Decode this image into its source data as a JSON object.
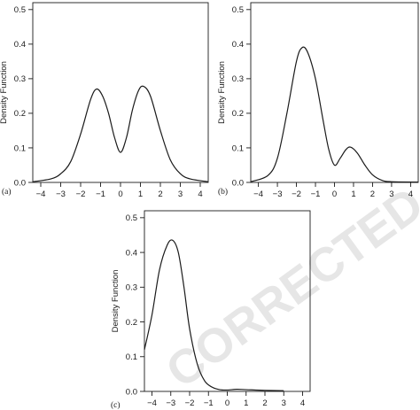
{
  "watermark": "CORRECTED PROOF",
  "chart_data": [
    {
      "type": "line",
      "panel_label": "(a)",
      "xlabel": "",
      "ylabel": "Density Function",
      "xlim": [
        -4.4,
        4.4
      ],
      "ylim": [
        0,
        0.52
      ],
      "xticks": [
        -4,
        -3,
        -2,
        -1,
        0,
        1,
        2,
        3,
        4
      ],
      "yticks": [
        0.0,
        0.1,
        0.2,
        0.3,
        0.4,
        0.5
      ],
      "ytick_labels": [
        "0.0",
        "0.1",
        "0.2",
        "0.3",
        "0.4",
        "0.5"
      ],
      "series": [
        {
          "x": [
            -4.4,
            -3.5,
            -3.0,
            -2.5,
            -2.0,
            -1.5,
            -1.2,
            -0.9,
            -0.6,
            -0.3,
            0.0,
            0.3,
            0.6,
            0.9,
            1.15,
            1.5,
            2.0,
            2.5,
            3.0,
            3.5,
            4.4
          ],
          "y": [
            0.002,
            0.01,
            0.025,
            0.06,
            0.14,
            0.24,
            0.27,
            0.25,
            0.2,
            0.13,
            0.087,
            0.13,
            0.21,
            0.265,
            0.278,
            0.25,
            0.15,
            0.065,
            0.025,
            0.01,
            0.002
          ]
        }
      ]
    },
    {
      "type": "line",
      "panel_label": "(b)",
      "xlabel": "",
      "ylabel": "Density Function",
      "xlim": [
        -4.4,
        4.4
      ],
      "ylim": [
        0,
        0.52
      ],
      "xticks": [
        -4,
        -3,
        -2,
        -1,
        0,
        1,
        2,
        3,
        4
      ],
      "yticks": [
        0.0,
        0.1,
        0.2,
        0.3,
        0.4,
        0.5
      ],
      "ytick_labels": [
        "0.0",
        "0.1",
        "0.2",
        "0.3",
        "0.4",
        "0.5"
      ],
      "series": [
        {
          "x": [
            -4.4,
            -3.5,
            -3.0,
            -2.5,
            -2.0,
            -1.7,
            -1.4,
            -1.0,
            -0.6,
            -0.3,
            0.0,
            0.3,
            0.6,
            0.85,
            1.2,
            1.6,
            2.0,
            2.5,
            3.0,
            4.4
          ],
          "y": [
            0.002,
            0.02,
            0.07,
            0.2,
            0.35,
            0.39,
            0.375,
            0.3,
            0.18,
            0.095,
            0.05,
            0.07,
            0.095,
            0.102,
            0.085,
            0.05,
            0.022,
            0.006,
            0.002,
            0.001
          ]
        }
      ]
    },
    {
      "type": "line",
      "panel_label": "(c)",
      "xlabel": "",
      "ylabel": "Density Function",
      "xlim": [
        -4.4,
        4.4
      ],
      "ylim": [
        0,
        0.52
      ],
      "xticks": [
        -4,
        -3,
        -2,
        -1,
        0,
        1,
        2,
        3,
        4
      ],
      "yticks": [
        0.0,
        0.1,
        0.2,
        0.3,
        0.4,
        0.5
      ],
      "ytick_labels": [
        "0.0",
        "0.1",
        "0.2",
        "0.3",
        "0.4",
        "0.5"
      ],
      "series": [
        {
          "x": [
            -4.4,
            -4.0,
            -3.6,
            -3.2,
            -2.9,
            -2.6,
            -2.3,
            -2.0,
            -1.6,
            -1.2,
            -0.8,
            -0.4,
            0.0,
            0.5,
            1.0,
            2.0,
            3.0
          ],
          "y": [
            0.12,
            0.22,
            0.35,
            0.42,
            0.435,
            0.4,
            0.3,
            0.18,
            0.08,
            0.03,
            0.012,
            0.005,
            0.004,
            0.006,
            0.005,
            0.003,
            0.002
          ]
        }
      ]
    }
  ]
}
